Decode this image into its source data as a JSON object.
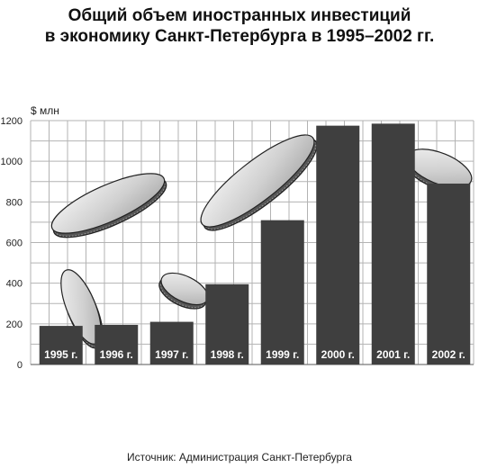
{
  "title_line1": "Общий объем иностранных инвестиций",
  "title_line2": "в экономику Санкт-Петербурга в 1995–2002 гг.",
  "source": "Источник: Администрация Санкт-Петербурга",
  "chart_data": {
    "type": "bar",
    "title": "Общий объем иностранных инвестиций в экономику Санкт-Петербурга в 1995–2002 гг.",
    "ylabel": "$ млн",
    "ylim": [
      0,
      1200
    ],
    "yticks": [
      0,
      200,
      400,
      600,
      800,
      1000,
      1200
    ],
    "categories": [
      "1995 г.",
      "1996 г.",
      "1997 г.",
      "1998 г.",
      "1999 г.",
      "2000 г.",
      "2001 г.",
      "2002 г."
    ],
    "values": [
      190,
      195,
      210,
      395,
      710,
      1175,
      1185,
      890
    ],
    "grid": true,
    "legend": "none",
    "colors": {
      "bar": "#3f3f3f",
      "grid": "#b3b3b3",
      "label": "#ffffff"
    }
  },
  "icons": [
    "coin-icon"
  ]
}
